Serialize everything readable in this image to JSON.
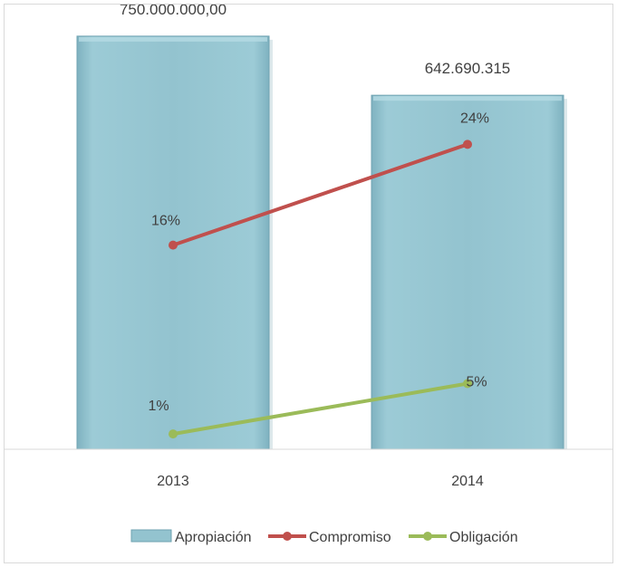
{
  "chart_data": {
    "type": "bar",
    "categories": [
      "2013",
      "2014"
    ],
    "ylim": [
      0,
      800000000
    ],
    "grid": false,
    "legend_position": "bottom",
    "bar_series": {
      "name": "Apropiación",
      "values": [
        750000000,
        642690315
      ],
      "data_labels": [
        "750.000.000,00",
        "642.690.315"
      ],
      "color": "#93c3cf"
    },
    "line_series": [
      {
        "name": "Compromiso",
        "values": [
          16,
          24
        ],
        "data_labels": [
          "16%",
          "24%"
        ],
        "color": "#c0504d"
      },
      {
        "name": "Obligación",
        "values": [
          1,
          5
        ],
        "data_labels": [
          "1%",
          "5%"
        ],
        "color": "#9bbb59"
      }
    ]
  }
}
